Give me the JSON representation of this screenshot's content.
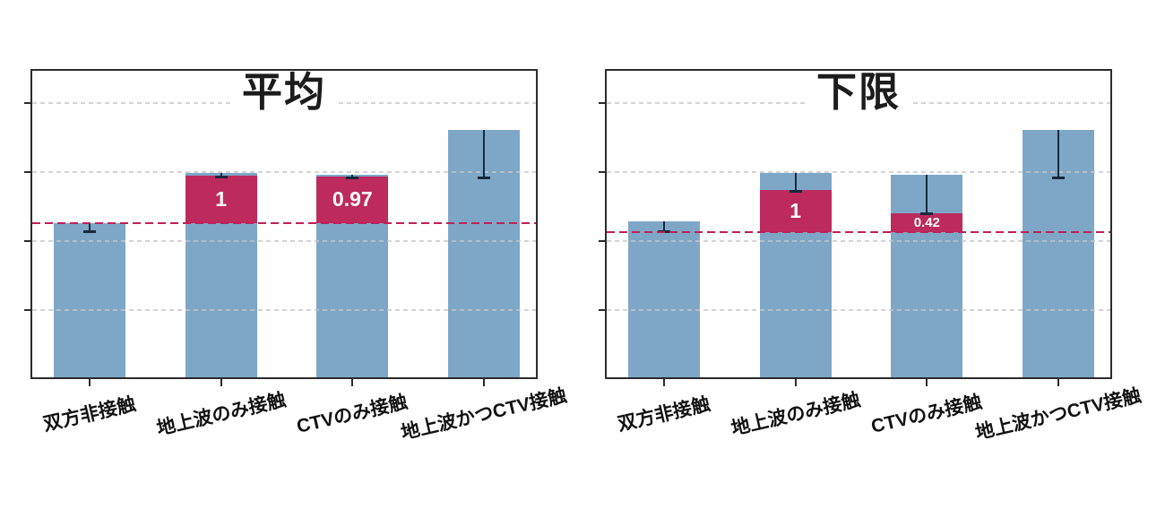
{
  "figure": {
    "background": "#ffffff",
    "panel_count": 2
  },
  "colors": {
    "bar_fill": "#7ea7c7",
    "segment_fill": "#bc2a5e",
    "reference_line": "#c11f56",
    "gridline": "#c6c6c8",
    "axis_border": "#2b2b2b",
    "error_bar": "#16293c",
    "segment_label_text": "#ffffff",
    "title_text": "#1c1c1c",
    "category_label_text": "#111111"
  },
  "chart_data": [
    {
      "type": "bar",
      "title": "平均",
      "xlabel": "",
      "ylabel": "",
      "categories": [
        "双方非接触",
        "地上波のみ接触",
        "CTVのみ接触",
        "地上波かつCTV接触"
      ],
      "ylim": [
        0,
        4.49
      ],
      "y_tick_values": [
        1,
        2,
        3,
        4
      ],
      "y_tick_labels": [],
      "grid": true,
      "legend": "none",
      "reference_line": {
        "value": 2.26,
        "style": "dashed"
      },
      "bars": [
        {
          "category": "双方非接触",
          "top": 2.26,
          "error_low": 2.14,
          "segment": null
        },
        {
          "category": "地上波のみ接触",
          "top": 2.99,
          "error_low": 2.93,
          "segment": {
            "from": 2.26,
            "to": 2.95,
            "label": "1"
          }
        },
        {
          "category": "CTVのみ接触",
          "top": 2.96,
          "error_low": 2.92,
          "segment": {
            "from": 2.26,
            "to": 2.94,
            "label": "0.97"
          }
        },
        {
          "category": "地上波かつCTV接触",
          "top": 3.61,
          "error_low": 2.92,
          "segment": null
        }
      ]
    },
    {
      "type": "bar",
      "title": "下限",
      "xlabel": "",
      "ylabel": "",
      "categories": [
        "双方非接触",
        "地上波のみ接触",
        "CTVのみ接触",
        "地上波かつCTV接触"
      ],
      "ylim": [
        0,
        4.49
      ],
      "y_tick_values": [
        1,
        2,
        3,
        4
      ],
      "y_tick_labels": [],
      "grid": true,
      "legend": "none",
      "reference_line": {
        "value": 2.13,
        "style": "dashed"
      },
      "bars": [
        {
          "category": "双方非接触",
          "top": 2.29,
          "error_low": 2.14,
          "segment": null
        },
        {
          "category": "地上波のみ接触",
          "top": 2.99,
          "error_low": 2.73,
          "segment": {
            "from": 2.13,
            "to": 2.74,
            "label": "1"
          }
        },
        {
          "category": "CTVのみ接触",
          "top": 2.96,
          "error_low": 2.4,
          "segment": {
            "from": 2.13,
            "to": 2.4,
            "label": "0.42"
          }
        },
        {
          "category": "地上波かつCTV接触",
          "top": 3.61,
          "error_low": 2.92,
          "segment": null
        }
      ]
    }
  ]
}
